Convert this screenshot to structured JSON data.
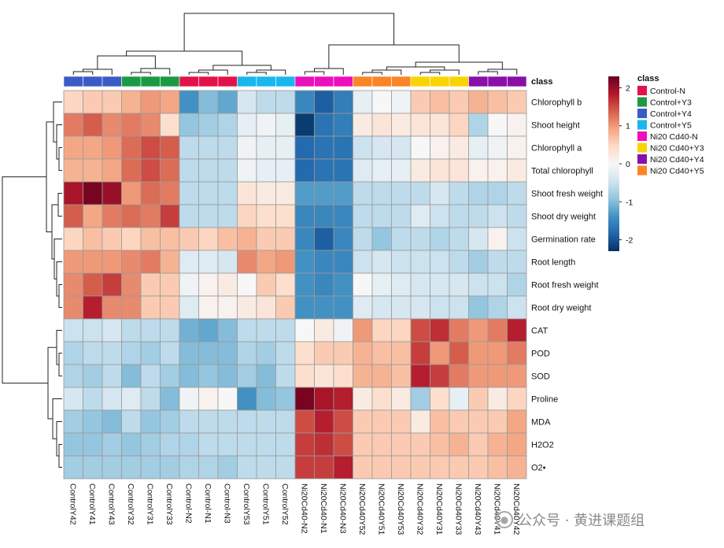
{
  "chart_data": {
    "type": "heatmap",
    "title": "",
    "rows": [
      "Chlorophyll b",
      "Shoot height",
      "Chlorophyll a",
      "Total chlorophyll",
      "Shoot fresh weight",
      "Shoot dry weight",
      "Germination rate",
      "Root length",
      "Root fresh weight",
      "Root dry weight",
      "CAT",
      "POD",
      "SOD",
      "Proline",
      "MDA",
      "H2O2",
      "O2•"
    ],
    "columns": [
      "ControlY42",
      "ControlY41",
      "ControlY43",
      "ControlY32",
      "ControlY31",
      "ControlY33",
      "Control-N2",
      "Control-N1",
      "Control-N3",
      "ControlY53",
      "ControlY51",
      "ControlY52",
      "Ni20Cd40-N2",
      "Ni20Cd40-N1",
      "Ni20Cd40-N3",
      "Ni20Cd40Y52",
      "Ni20Cd40Y51",
      "Ni20Cd40Y53",
      "Ni20Cd40Y32",
      "Ni20Cd40Y31",
      "Ni20Cd40Y33",
      "Ni20Cd40Y43",
      "Ni20Cd40Y41",
      "Ni20Cd40Y42"
    ],
    "column_classes": [
      "Control+Y4",
      "Control+Y4",
      "Control+Y4",
      "Control+Y3",
      "Control+Y3",
      "Control+Y3",
      "Control-N",
      "Control-N",
      "Control-N",
      "Control+Y5",
      "Control+Y5",
      "Control+Y5",
      "Ni20 Cd40-N",
      "Ni20 Cd40-N",
      "Ni20 Cd40-N",
      "Ni20 Cd40+Y5",
      "Ni20 Cd40+Y5",
      "Ni20 Cd40+Y5",
      "Ni20 Cd40+Y3",
      "Ni20 Cd40+Y3",
      "Ni20 Cd40+Y3",
      "Ni20 Cd40+Y4",
      "Ni20 Cd40+Y4",
      "Ni20 Cd40+Y4"
    ],
    "values": [
      [
        0.5,
        0.6,
        0.6,
        0.8,
        1.0,
        0.9,
        -1.4,
        -1.0,
        -1.2,
        -0.4,
        -0.6,
        -0.6,
        -1.5,
        -1.9,
        -1.6,
        -0.2,
        0.0,
        -0.1,
        0.6,
        0.7,
        0.6,
        0.8,
        0.7,
        0.6
      ],
      [
        1.2,
        1.4,
        1.1,
        1.2,
        1.1,
        0.4,
        -0.9,
        -0.8,
        -0.7,
        -0.2,
        -0.1,
        -0.2,
        -2.2,
        -1.7,
        -1.6,
        0.2,
        0.3,
        0.2,
        0.3,
        0.3,
        0.5,
        -0.7,
        0.0,
        0.1
      ],
      [
        0.9,
        0.9,
        1.0,
        1.3,
        1.5,
        1.4,
        -0.6,
        -0.6,
        -0.6,
        -0.1,
        -0.2,
        -0.2,
        -1.8,
        -1.7,
        -1.7,
        -0.5,
        -0.4,
        -0.4,
        0.0,
        0.1,
        0.2,
        -0.2,
        -0.1,
        0.1
      ],
      [
        0.8,
        0.8,
        0.9,
        1.3,
        1.5,
        1.3,
        -0.6,
        -0.6,
        -0.6,
        -0.1,
        -0.2,
        -0.2,
        -1.8,
        -1.7,
        -1.7,
        -0.3,
        -0.2,
        -0.2,
        0.2,
        0.3,
        0.3,
        0.1,
        0.1,
        0.2
      ],
      [
        1.9,
        2.2,
        2.0,
        1.0,
        1.3,
        1.2,
        -0.6,
        -0.6,
        -0.6,
        0.3,
        0.2,
        0.2,
        -1.3,
        -1.3,
        -1.3,
        -0.6,
        -0.6,
        -0.6,
        -0.6,
        -0.4,
        -0.6,
        -0.7,
        -0.7,
        -0.6
      ],
      [
        1.4,
        0.9,
        1.2,
        1.3,
        1.2,
        1.6,
        -0.6,
        -0.6,
        -0.6,
        0.5,
        0.4,
        0.4,
        -1.5,
        -1.5,
        -1.5,
        -0.6,
        -0.6,
        -0.6,
        -0.3,
        -0.5,
        -0.6,
        -0.6,
        -0.5,
        -0.6
      ],
      [
        0.5,
        0.7,
        0.6,
        0.5,
        0.7,
        0.7,
        0.6,
        0.5,
        0.7,
        0.8,
        0.6,
        0.6,
        -1.5,
        -1.9,
        -1.5,
        -0.6,
        -0.9,
        -0.6,
        -0.6,
        -0.7,
        -0.6,
        -0.4,
        0.1,
        -0.5
      ],
      [
        1.0,
        1.0,
        1.0,
        1.1,
        1.2,
        0.8,
        -0.3,
        -0.3,
        -0.4,
        1.1,
        0.9,
        1.0,
        -1.4,
        -1.5,
        -1.5,
        -0.5,
        -0.4,
        -0.5,
        -0.5,
        -0.5,
        -0.6,
        -0.8,
        -0.6,
        -0.6
      ],
      [
        1.1,
        1.4,
        1.6,
        1.1,
        0.6,
        0.6,
        -0.1,
        0.1,
        0.2,
        0.0,
        0.6,
        0.4,
        -1.4,
        -1.5,
        -1.4,
        0.0,
        -0.2,
        -0.3,
        -0.4,
        -0.4,
        -0.4,
        -0.5,
        -0.5,
        -0.7
      ],
      [
        1.1,
        1.8,
        1.1,
        1.1,
        0.6,
        0.6,
        -0.3,
        0.1,
        0.1,
        0.2,
        0.3,
        0.6,
        -1.4,
        -1.4,
        -1.4,
        -0.3,
        -0.4,
        -0.4,
        -0.4,
        -0.5,
        -0.5,
        -0.9,
        -0.7,
        -0.5
      ],
      [
        -0.5,
        -0.5,
        -0.4,
        -0.6,
        -0.6,
        -0.6,
        -1.1,
        -1.2,
        -1.0,
        -0.6,
        -0.6,
        -0.6,
        0.0,
        0.2,
        -0.1,
        1.0,
        0.5,
        0.5,
        1.5,
        1.7,
        1.2,
        1.0,
        1.2,
        1.8
      ],
      [
        -0.7,
        -0.6,
        -0.6,
        -0.7,
        -0.8,
        -0.6,
        -1.0,
        -1.0,
        -1.0,
        -0.7,
        -0.8,
        -0.6,
        0.4,
        0.6,
        0.6,
        0.8,
        0.7,
        0.7,
        1.6,
        1.0,
        1.4,
        1.0,
        1.0,
        1.2
      ],
      [
        -0.7,
        -0.8,
        -0.6,
        -1.0,
        -0.6,
        -0.8,
        -1.0,
        -0.9,
        -1.0,
        -0.8,
        -1.0,
        -0.6,
        0.4,
        0.3,
        0.4,
        0.8,
        0.8,
        0.7,
        1.8,
        1.6,
        1.2,
        1.0,
        1.0,
        1.0
      ],
      [
        -0.4,
        -0.6,
        -0.4,
        -0.3,
        -0.6,
        -1.0,
        -0.1,
        0.1,
        0.0,
        -1.4,
        -1.0,
        -0.9,
        2.2,
        1.9,
        1.8,
        0.2,
        0.4,
        0.2,
        -0.8,
        0.4,
        -0.2,
        0.6,
        0.2,
        0.5
      ],
      [
        -0.8,
        -0.9,
        -1.0,
        -0.6,
        -0.9,
        -0.8,
        -0.6,
        -0.6,
        -0.6,
        -0.6,
        -0.6,
        -0.6,
        1.5,
        1.8,
        1.5,
        0.6,
        0.6,
        0.6,
        0.2,
        0.7,
        0.6,
        0.6,
        0.6,
        0.9
      ],
      [
        -0.9,
        -0.9,
        -0.8,
        -0.9,
        -0.8,
        -0.7,
        -0.7,
        -0.6,
        -0.6,
        -0.6,
        -0.6,
        -0.6,
        1.6,
        1.7,
        1.5,
        0.6,
        0.6,
        0.6,
        0.6,
        0.7,
        0.8,
        0.6,
        0.8,
        0.9
      ],
      [
        -0.8,
        -0.8,
        -0.8,
        -0.8,
        -0.8,
        -0.8,
        -0.7,
        -0.7,
        -0.8,
        -0.6,
        -0.6,
        -0.6,
        1.6,
        1.6,
        1.8,
        0.6,
        0.6,
        0.6,
        0.6,
        0.6,
        0.6,
        0.6,
        0.7,
        0.8
      ]
    ],
    "color_scale": {
      "range": [
        -2.3,
        2.3
      ],
      "ticks": [
        2,
        1,
        0,
        -1,
        -2
      ],
      "stops": [
        "#053061",
        "#2166ac",
        "#4393c3",
        "#92c5de",
        "#d1e5f0",
        "#f7f7f7",
        "#fddbc7",
        "#f4a582",
        "#d6604d",
        "#b2182b",
        "#67001f"
      ]
    },
    "legend": {
      "title": "class",
      "placement": "right",
      "entries": [
        {
          "label": "Control-N",
          "color": "#e3124b"
        },
        {
          "label": "Control+Y3",
          "color": "#1b9a43"
        },
        {
          "label": "Control+Y4",
          "color": "#3b5bc5"
        },
        {
          "label": "Control+Y5",
          "color": "#19b7ee"
        },
        {
          "label": "Ni20 Cd40-N",
          "color": "#ec0fbc"
        },
        {
          "label": "Ni20 Cd40+Y3",
          "color": "#f9d402"
        },
        {
          "label": "Ni20 Cd40+Y4",
          "color": "#8a0fa8"
        },
        {
          "label": "Ni20 Cd40+Y5",
          "color": "#f98626"
        }
      ]
    },
    "annotation_bar_label": "class"
  },
  "watermark": {
    "icon": "wechat-icon",
    "text": "公众号 · 黄进课题组"
  }
}
